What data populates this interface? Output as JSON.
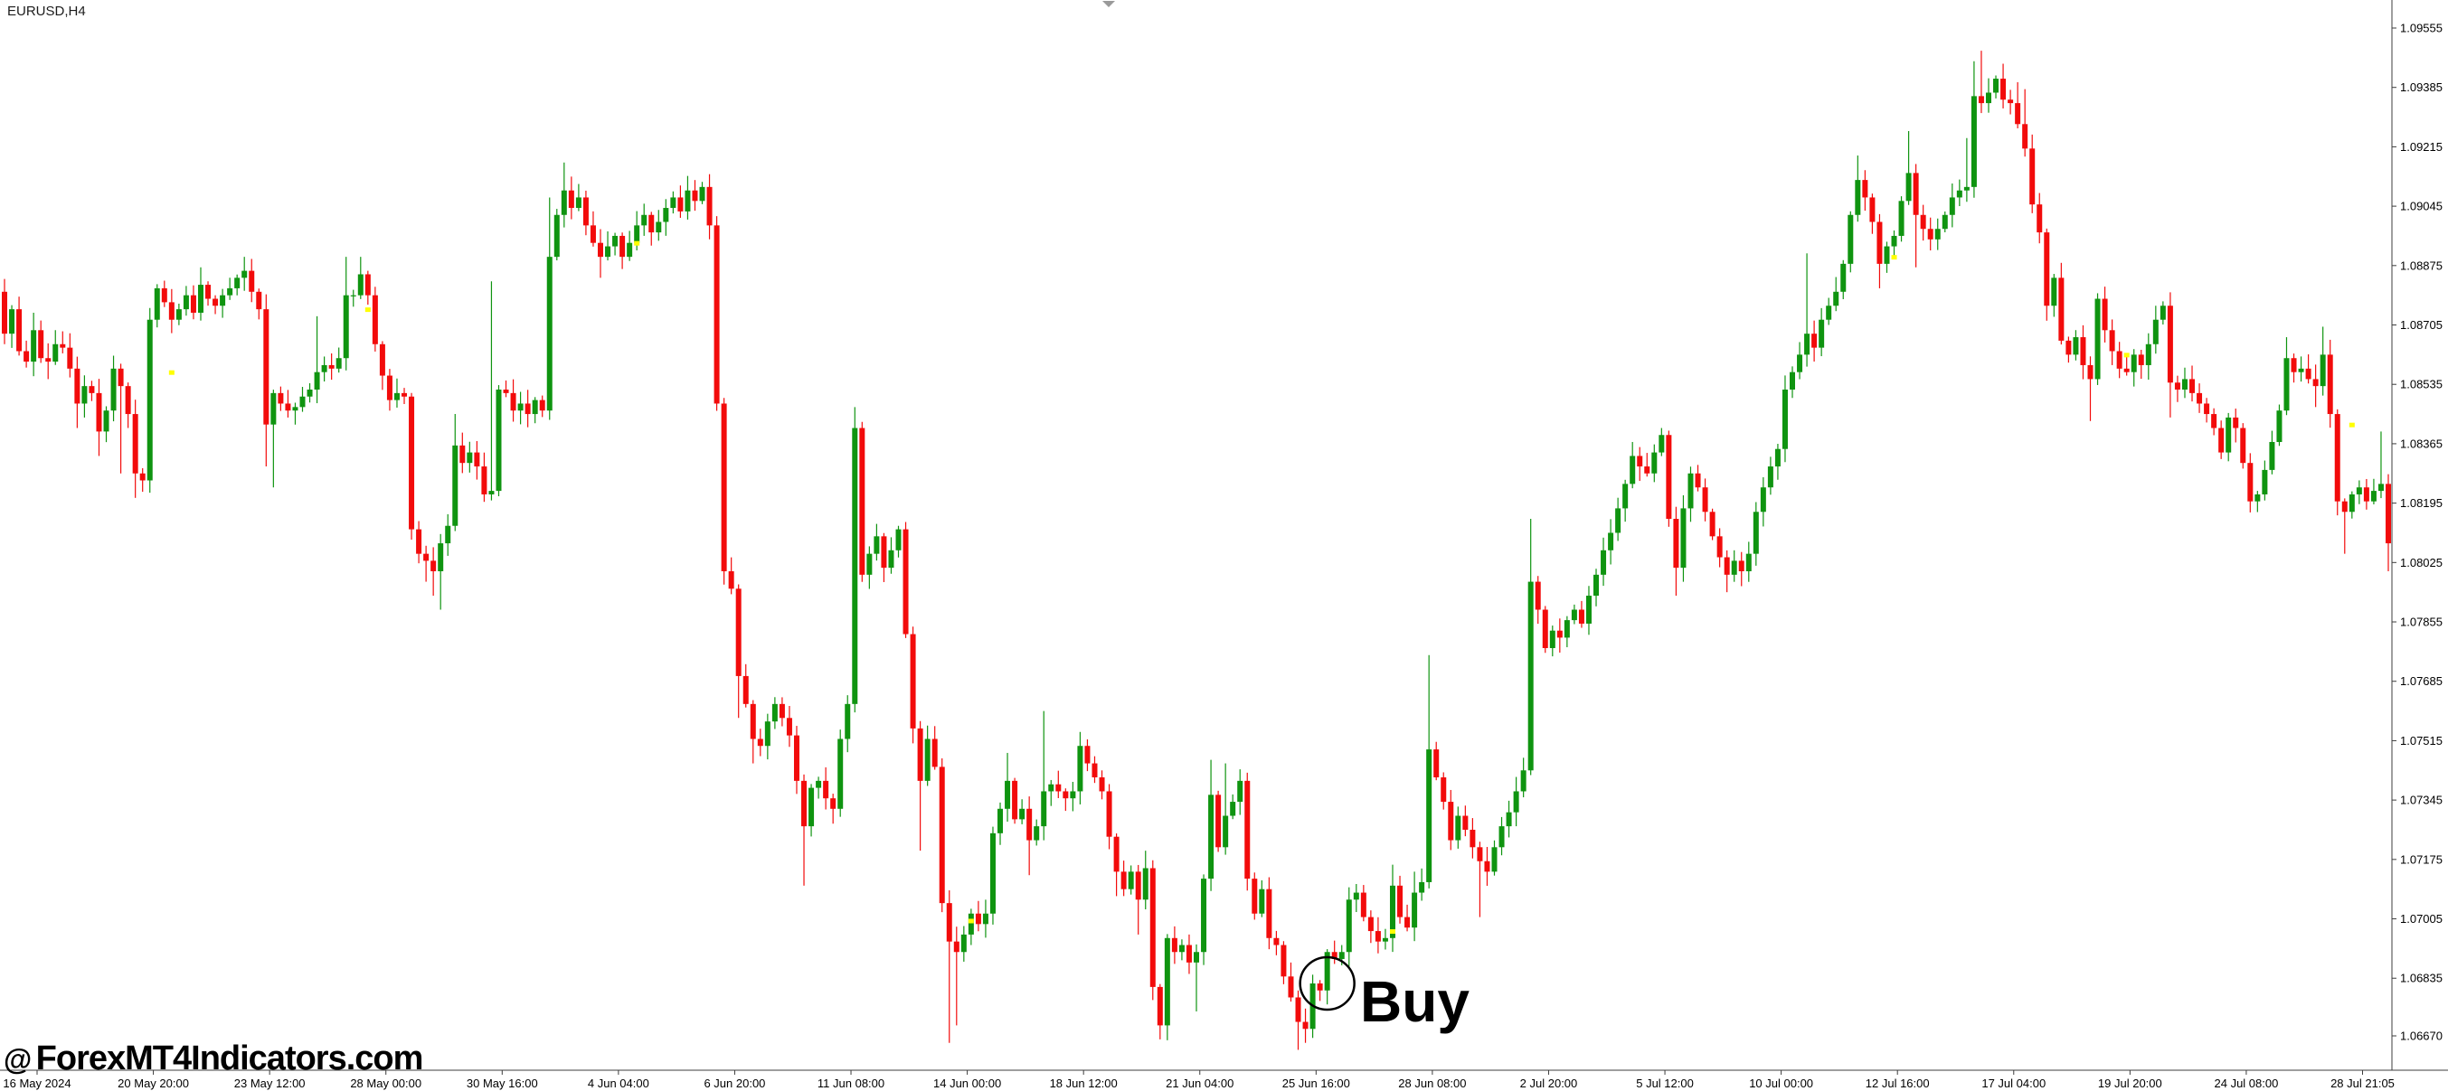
{
  "window": {
    "symbol_label": "EURUSD,H4"
  },
  "watermark": {
    "at": "@",
    "site": "ForexMT4Indicators.com"
  },
  "colors": {
    "background": "#ffffff",
    "bull": "#0f9410",
    "bear": "#f20b0b",
    "axis": "#3c3c3c",
    "text": "#000000",
    "signal_dot": "#ffff00",
    "shift_triangle": "#9a9a9a",
    "annotation": "#000000"
  },
  "chart_data": {
    "type": "candlestick",
    "symbol": "EURUSD",
    "timeframe": "H4",
    "title": "EURUSD,H4",
    "grid": false,
    "legend": false,
    "bars_total": 329,
    "ylim": [
      1.06591,
      1.09625
    ],
    "price_axis_labels": [
      "1.09555",
      "1.09385",
      "1.09215",
      "1.09045",
      "1.08875",
      "1.08705",
      "1.08535",
      "1.08365",
      "1.08195",
      "1.08025",
      "1.07855",
      "1.07685",
      "1.07515",
      "1.07345",
      "1.07175",
      "1.07005",
      "1.06835",
      "1.06670"
    ],
    "time_axis_labels": [
      "16 May 2024",
      "20 May 20:00",
      "23 May 12:00",
      "28 May 00:00",
      "30 May 16:00",
      "4 Jun 04:00",
      "6 Jun 20:00",
      "11 Jun 08:00",
      "14 Jun 00:00",
      "18 Jun 12:00",
      "21 Jun 04:00",
      "25 Jun 16:00",
      "28 Jun 08:00",
      "2 Jul 20:00",
      "5 Jul 12:00",
      "10 Jul 00:00",
      "12 Jul 16:00",
      "17 Jul 04:00",
      "19 Jul 20:00",
      "24 Jul 08:00",
      "28 Jul 21:05"
    ],
    "first_open": 1.088,
    "anchors": [
      [
        0,
        1.0868
      ],
      [
        1,
        1.0875
      ],
      [
        2,
        1.0863
      ],
      [
        3,
        1.086
      ],
      [
        4,
        1.0869,
        1.0874
      ],
      [
        5,
        1.0861
      ],
      [
        6,
        1.086,
        null,
        1.0855
      ],
      [
        7,
        1.0865
      ],
      [
        8,
        1.0864
      ],
      [
        9,
        1.0858
      ],
      [
        10,
        1.0848,
        null,
        1.0841
      ],
      [
        11,
        1.0853
      ],
      [
        12,
        1.0851
      ],
      [
        13,
        1.084,
        null,
        1.0833
      ],
      [
        14,
        1.0846
      ],
      [
        15,
        1.0858
      ],
      [
        16,
        1.0853,
        null,
        1.0828
      ],
      [
        17,
        1.0845
      ],
      [
        18,
        1.0828,
        null,
        1.0821
      ],
      [
        19,
        1.0826
      ],
      [
        20,
        1.0872
      ],
      [
        21,
        1.0881
      ],
      [
        22,
        1.0877
      ],
      [
        23,
        1.0872
      ],
      [
        24,
        1.0875
      ],
      [
        25,
        1.0879
      ],
      [
        26,
        1.0874
      ],
      [
        27,
        1.0882,
        1.0887
      ],
      [
        28,
        1.0878
      ],
      [
        29,
        1.0876
      ],
      [
        30,
        1.0879
      ],
      [
        31,
        1.0881
      ],
      [
        32,
        1.0884
      ],
      [
        33,
        1.0886,
        1.089
      ],
      [
        34,
        1.088
      ],
      [
        35,
        1.0875
      ],
      [
        36,
        1.0842,
        null,
        1.083
      ],
      [
        37,
        1.0851,
        null,
        1.0824
      ],
      [
        38,
        1.0848
      ],
      [
        39,
        1.0846
      ],
      [
        40,
        1.0847
      ],
      [
        41,
        1.085
      ],
      [
        42,
        1.0852
      ],
      [
        43,
        1.0857,
        1.0873
      ],
      [
        44,
        1.0859
      ],
      [
        45,
        1.0858
      ],
      [
        46,
        1.0861
      ],
      [
        47,
        1.0879,
        1.089
      ],
      [
        48,
        1.0879
      ],
      [
        49,
        1.0885,
        1.089
      ],
      [
        50,
        1.0879
      ],
      [
        51,
        1.0865
      ],
      [
        52,
        1.0856
      ],
      [
        53,
        1.0849
      ],
      [
        54,
        1.0851
      ],
      [
        55,
        1.085
      ],
      [
        56,
        1.0812
      ],
      [
        57,
        1.0805
      ],
      [
        58,
        1.0803,
        null,
        1.0797
      ],
      [
        59,
        1.08,
        null,
        1.0793
      ],
      [
        60,
        1.0808,
        null,
        1.0789
      ],
      [
        61,
        1.0813
      ],
      [
        62,
        1.0836,
        1.0845
      ],
      [
        63,
        1.0831
      ],
      [
        64,
        1.0834
      ],
      [
        65,
        1.083
      ],
      [
        66,
        1.0822
      ],
      [
        67,
        1.0823,
        1.0883
      ],
      [
        68,
        1.0852
      ],
      [
        69,
        1.0851
      ],
      [
        70,
        1.0846
      ],
      [
        71,
        1.0848
      ],
      [
        72,
        1.0845
      ],
      [
        73,
        1.0849
      ],
      [
        74,
        1.0846
      ],
      [
        75,
        1.089,
        1.0907
      ],
      [
        76,
        1.0902
      ],
      [
        77,
        1.0909,
        1.0917
      ],
      [
        78,
        1.0904
      ],
      [
        79,
        1.0907
      ],
      [
        80,
        1.0899
      ],
      [
        81,
        1.0894
      ],
      [
        82,
        1.089,
        null,
        1.0884
      ],
      [
        83,
        1.0893
      ],
      [
        84,
        1.0896
      ],
      [
        85,
        1.089
      ],
      [
        86,
        1.0894
      ],
      [
        87,
        1.0899
      ],
      [
        88,
        1.0902
      ],
      [
        89,
        1.0897
      ],
      [
        90,
        1.09
      ],
      [
        91,
        1.0904
      ],
      [
        92,
        1.0907
      ],
      [
        93,
        1.0903
      ],
      [
        94,
        1.0909,
        1.0913
      ],
      [
        95,
        1.0906
      ],
      [
        96,
        1.091
      ],
      [
        97,
        1.0899
      ],
      [
        98,
        1.0848
      ],
      [
        99,
        1.08
      ],
      [
        100,
        1.0795
      ],
      [
        101,
        1.077,
        null,
        1.0758
      ],
      [
        102,
        1.0762
      ],
      [
        103,
        1.0752,
        null,
        1.0745
      ],
      [
        104,
        1.075
      ],
      [
        105,
        1.0757
      ],
      [
        106,
        1.0762
      ],
      [
        107,
        1.0758
      ],
      [
        108,
        1.0753
      ],
      [
        109,
        1.074
      ],
      [
        110,
        1.0727,
        null,
        1.071
      ],
      [
        111,
        1.0738
      ],
      [
        112,
        1.074
      ],
      [
        113,
        1.0735
      ],
      [
        114,
        1.0732
      ],
      [
        115,
        1.0752
      ],
      [
        116,
        1.0762
      ],
      [
        117,
        1.0841,
        1.0847
      ],
      [
        118,
        1.0799
      ],
      [
        119,
        1.0805
      ],
      [
        120,
        1.081
      ],
      [
        121,
        1.0801
      ],
      [
        122,
        1.0806
      ],
      [
        123,
        1.0812
      ],
      [
        124,
        1.0782
      ],
      [
        125,
        1.0755
      ],
      [
        126,
        1.074,
        null,
        1.072
      ],
      [
        127,
        1.0752
      ],
      [
        128,
        1.0744
      ],
      [
        129,
        1.0705
      ],
      [
        130,
        1.0694,
        null,
        1.0665
      ],
      [
        131,
        1.0691,
        null,
        1.067
      ],
      [
        132,
        1.0696
      ],
      [
        133,
        1.0702
      ],
      [
        134,
        1.0699
      ],
      [
        135,
        1.0702
      ],
      [
        136,
        1.0725
      ],
      [
        137,
        1.0732
      ],
      [
        138,
        1.074,
        1.0748
      ],
      [
        139,
        1.0729
      ],
      [
        140,
        1.0732
      ],
      [
        141,
        1.0723,
        null,
        1.0713
      ],
      [
        142,
        1.0727
      ],
      [
        143,
        1.0737,
        1.076
      ],
      [
        144,
        1.0739
      ],
      [
        145,
        1.0737
      ],
      [
        146,
        1.0735
      ],
      [
        147,
        1.0737
      ],
      [
        148,
        1.075,
        1.0754
      ],
      [
        149,
        1.0745
      ],
      [
        150,
        1.0741
      ],
      [
        151,
        1.0737
      ],
      [
        152,
        1.0724
      ],
      [
        153,
        1.0714,
        null,
        1.0707
      ],
      [
        154,
        1.0709
      ],
      [
        155,
        1.0714
      ],
      [
        156,
        1.0706,
        null,
        1.0696
      ],
      [
        157,
        1.0715,
        1.072
      ],
      [
        158,
        1.0681
      ],
      [
        159,
        1.067,
        null,
        1.0666
      ],
      [
        160,
        1.0695
      ],
      [
        161,
        1.0691
      ],
      [
        162,
        1.0693
      ],
      [
        163,
        1.0688
      ],
      [
        164,
        1.0691,
        null,
        1.0674
      ],
      [
        165,
        1.0712
      ],
      [
        166,
        1.0736,
        1.0746
      ],
      [
        167,
        1.0721
      ],
      [
        168,
        1.073,
        1.0745
      ],
      [
        169,
        1.0734
      ],
      [
        170,
        1.074
      ],
      [
        171,
        1.0712
      ],
      [
        172,
        1.0702
      ],
      [
        173,
        1.0709
      ],
      [
        174,
        1.0695
      ],
      [
        175,
        1.0693
      ],
      [
        176,
        1.0684
      ],
      [
        177,
        1.0678
      ],
      [
        178,
        1.0671,
        null,
        1.0663
      ],
      [
        179,
        1.0669,
        null,
        1.0665
      ],
      [
        180,
        1.0682
      ],
      [
        181,
        1.068
      ],
      [
        182,
        1.0691,
        null,
        1.0676
      ],
      [
        183,
        1.0689
      ],
      [
        184,
        1.0691
      ],
      [
        185,
        1.0706
      ],
      [
        186,
        1.0708
      ],
      [
        187,
        1.0701
      ],
      [
        188,
        1.0697
      ],
      [
        189,
        1.0694
      ],
      [
        190,
        1.0695
      ],
      [
        191,
        1.071,
        1.0716
      ],
      [
        192,
        1.0701
      ],
      [
        193,
        1.0698
      ],
      [
        194,
        1.0708,
        1.0714
      ],
      [
        195,
        1.0711
      ],
      [
        196,
        1.0749,
        1.0776
      ],
      [
        197,
        1.0741
      ],
      [
        198,
        1.0734
      ],
      [
        199,
        1.0723
      ],
      [
        200,
        1.073
      ],
      [
        201,
        1.0726
      ],
      [
        202,
        1.0721
      ],
      [
        203,
        1.0717,
        null,
        1.0701
      ],
      [
        204,
        1.0714
      ],
      [
        205,
        1.0721
      ],
      [
        206,
        1.0727
      ],
      [
        207,
        1.0731
      ],
      [
        208,
        1.0737
      ],
      [
        209,
        1.0743
      ],
      [
        210,
        1.0797,
        1.0815
      ],
      [
        211,
        1.0789
      ],
      [
        212,
        1.0778
      ],
      [
        213,
        1.0783
      ],
      [
        214,
        1.0781
      ],
      [
        215,
        1.0786
      ],
      [
        216,
        1.0789
      ],
      [
        217,
        1.0785
      ],
      [
        218,
        1.0793
      ],
      [
        219,
        1.0799
      ],
      [
        220,
        1.0806
      ],
      [
        221,
        1.0811
      ],
      [
        222,
        1.0818
      ],
      [
        223,
        1.0825
      ],
      [
        224,
        1.0833,
        1.0837
      ],
      [
        225,
        1.083
      ],
      [
        226,
        1.0828
      ],
      [
        227,
        1.0834
      ],
      [
        228,
        1.0839,
        1.0841
      ],
      [
        229,
        1.0815
      ],
      [
        230,
        1.0801,
        null,
        1.0793
      ],
      [
        231,
        1.0818
      ],
      [
        232,
        1.0828
      ],
      [
        233,
        1.0824
      ],
      [
        234,
        1.0817
      ],
      [
        235,
        1.081
      ],
      [
        236,
        1.0804
      ],
      [
        237,
        1.0799,
        null,
        1.0794
      ],
      [
        238,
        1.0803
      ],
      [
        239,
        1.08
      ],
      [
        240,
        1.0805
      ],
      [
        241,
        1.0817
      ],
      [
        242,
        1.0824
      ],
      [
        243,
        1.083
      ],
      [
        244,
        1.0835
      ],
      [
        245,
        1.0852
      ],
      [
        246,
        1.0857
      ],
      [
        247,
        1.0862
      ],
      [
        248,
        1.0868,
        1.0891
      ],
      [
        249,
        1.0864
      ],
      [
        250,
        1.0872
      ],
      [
        251,
        1.0876
      ],
      [
        252,
        1.088
      ],
      [
        253,
        1.0888
      ],
      [
        254,
        1.0902
      ],
      [
        255,
        1.0912,
        1.0919
      ],
      [
        256,
        1.0907
      ],
      [
        257,
        1.09
      ],
      [
        258,
        1.0888,
        null,
        1.0881
      ],
      [
        259,
        1.0893
      ],
      [
        260,
        1.0896
      ],
      [
        261,
        1.0906
      ],
      [
        262,
        1.0914,
        1.0926
      ],
      [
        263,
        1.0902,
        null,
        1.0887
      ],
      [
        264,
        1.0898
      ],
      [
        265,
        1.0895
      ],
      [
        266,
        1.0898
      ],
      [
        267,
        1.0902
      ],
      [
        268,
        1.0907,
        1.0911
      ],
      [
        269,
        1.0909
      ],
      [
        270,
        1.091,
        1.0924
      ],
      [
        271,
        1.0936,
        1.0946
      ],
      [
        272,
        1.0934,
        1.0949
      ],
      [
        273,
        1.0937
      ],
      [
        274,
        1.0941
      ],
      [
        275,
        1.0935
      ],
      [
        276,
        1.0934
      ],
      [
        277,
        1.0928,
        1.094
      ],
      [
        278,
        1.0921,
        1.0938
      ],
      [
        279,
        1.0905
      ],
      [
        280,
        1.0897
      ],
      [
        281,
        1.0876
      ],
      [
        282,
        1.0884
      ],
      [
        283,
        1.0866
      ],
      [
        284,
        1.0862
      ],
      [
        285,
        1.0867
      ],
      [
        286,
        1.0859
      ],
      [
        287,
        1.0855,
        null,
        1.0843
      ],
      [
        288,
        1.0878
      ],
      [
        289,
        1.0869
      ],
      [
        290,
        1.0863
      ],
      [
        291,
        1.0858
      ],
      [
        292,
        1.0857
      ],
      [
        293,
        1.0862
      ],
      [
        294,
        1.0859
      ],
      [
        295,
        1.0865
      ],
      [
        296,
        1.0872,
        1.0876
      ],
      [
        297,
        1.0876
      ],
      [
        298,
        1.0854,
        null,
        1.0844
      ],
      [
        299,
        1.0852
      ],
      [
        300,
        1.0855
      ],
      [
        301,
        1.0851
      ],
      [
        302,
        1.0848
      ],
      [
        303,
        1.0845
      ],
      [
        304,
        1.0841
      ],
      [
        305,
        1.0834
      ],
      [
        306,
        1.0844
      ],
      [
        307,
        1.0841
      ],
      [
        308,
        1.0831
      ],
      [
        309,
        1.082,
        null,
        1.0817
      ],
      [
        310,
        1.0822
      ],
      [
        311,
        1.0829
      ],
      [
        312,
        1.0837
      ],
      [
        313,
        1.0846
      ],
      [
        314,
        1.0861,
        1.0867
      ],
      [
        315,
        1.0857
      ],
      [
        316,
        1.0858
      ],
      [
        317,
        1.0855
      ],
      [
        318,
        1.0853,
        null,
        1.0847
      ],
      [
        319,
        1.0862,
        1.087
      ],
      [
        320,
        1.0845
      ],
      [
        321,
        1.082,
        null,
        1.0816
      ],
      [
        322,
        1.0817,
        null,
        1.0805
      ],
      [
        323,
        1.0822
      ],
      [
        324,
        1.0824
      ],
      [
        325,
        1.082
      ],
      [
        326,
        1.0823
      ],
      [
        327,
        1.0825,
        1.084
      ],
      [
        328,
        1.0808,
        null,
        1.08
      ]
    ],
    "signal_dots": [
      [
        23,
        1.0857
      ],
      [
        50,
        1.0875
      ],
      [
        87,
        1.0894
      ],
      [
        133,
        1.07
      ],
      [
        191,
        1.0697
      ],
      [
        260,
        1.089
      ],
      [
        292,
        1.0862
      ],
      [
        323,
        1.0842
      ]
    ],
    "annotations": {
      "label": "Buy",
      "circle_bar": 182,
      "circle_price": 1.0682,
      "circle_rx": 30,
      "circle_ry": 29
    }
  }
}
